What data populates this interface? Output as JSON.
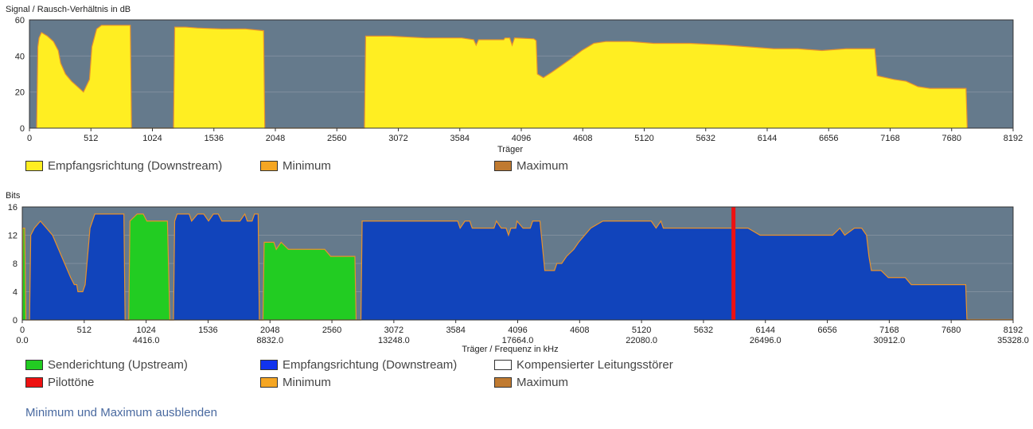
{
  "chart_data": [
    {
      "type": "area",
      "title": "Signal / Rausch-Verhältnis in dB",
      "xlabel": "Träger",
      "ylabel": "",
      "xlim": [
        0,
        8192
      ],
      "ylim": [
        0,
        60
      ],
      "x_ticks": [
        0,
        512,
        1024,
        1536,
        2048,
        2560,
        3072,
        3584,
        4096,
        4608,
        5120,
        5632,
        6144,
        6656,
        7168,
        7680,
        8192
      ],
      "y_ticks": [
        0,
        20,
        40,
        60
      ],
      "grid": true,
      "legend": [
        {
          "label": "Empfangsrichtung (Downstream)",
          "color": "#ffee22"
        },
        {
          "label": "Minimum",
          "color": "#f5a623"
        },
        {
          "label": "Maximum",
          "color": "#c07a30"
        }
      ],
      "series": [
        {
          "name": "Empfangsrichtung (Downstream)",
          "color": "#ffee22",
          "points": [
            [
              60,
              0
            ],
            [
              70,
              45
            ],
            [
              80,
              50
            ],
            [
              100,
              53
            ],
            [
              150,
              51
            ],
            [
              200,
              48
            ],
            [
              240,
              43
            ],
            [
              260,
              36
            ],
            [
              300,
              30
            ],
            [
              350,
              26
            ],
            [
              400,
              23
            ],
            [
              450,
              20
            ],
            [
              500,
              27
            ],
            [
              520,
              45
            ],
            [
              560,
              55
            ],
            [
              600,
              57
            ],
            [
              640,
              57
            ],
            [
              700,
              57
            ],
            [
              800,
              57
            ],
            [
              840,
              57
            ],
            [
              850,
              0
            ],
            [
              1200,
              0
            ],
            [
              1210,
              56
            ],
            [
              1300,
              56
            ],
            [
              1400,
              55.5
            ],
            [
              1600,
              55
            ],
            [
              1800,
              55
            ],
            [
              1950,
              54
            ],
            [
              1960,
              0
            ],
            [
              2790,
              0
            ],
            [
              2800,
              51
            ],
            [
              3000,
              51
            ],
            [
              3300,
              50
            ],
            [
              3600,
              50
            ],
            [
              3700,
              49
            ],
            [
              3720,
              46
            ],
            [
              3740,
              49
            ],
            [
              3950,
              49
            ],
            [
              3960,
              50
            ],
            [
              4000,
              50
            ],
            [
              4020,
              46
            ],
            [
              4040,
              50
            ],
            [
              4200,
              49.5
            ],
            [
              4220,
              48.5
            ],
            [
              4230,
              30
            ],
            [
              4280,
              28
            ],
            [
              4350,
              31
            ],
            [
              4500,
              38
            ],
            [
              4600,
              43
            ],
            [
              4700,
              47
            ],
            [
              4800,
              48
            ],
            [
              5000,
              48
            ],
            [
              5200,
              47
            ],
            [
              5500,
              47
            ],
            [
              5800,
              46
            ],
            [
              6000,
              45
            ],
            [
              6200,
              44
            ],
            [
              6400,
              44
            ],
            [
              6600,
              43
            ],
            [
              6800,
              44
            ],
            [
              7000,
              44
            ],
            [
              7040,
              44
            ],
            [
              7060,
              29
            ],
            [
              7200,
              27
            ],
            [
              7300,
              26
            ],
            [
              7400,
              23
            ],
            [
              7500,
              22
            ],
            [
              7600,
              22
            ],
            [
              7800,
              22
            ],
            [
              7810,
              0
            ]
          ]
        }
      ]
    },
    {
      "type": "area",
      "title": "Bits",
      "xlabel": "Träger / Frequenz in kHz",
      "ylabel": "",
      "xlim": [
        0,
        8192
      ],
      "ylim": [
        0,
        16
      ],
      "x_ticks": [
        0,
        512,
        1024,
        1536,
        2048,
        2560,
        3072,
        3584,
        4096,
        4608,
        5120,
        5632,
        6144,
        6656,
        7168,
        7680,
        8192
      ],
      "freq_ticks": [
        "0.0",
        "4416.0",
        "8832.0",
        "13248.0",
        "17664.0",
        "22080.0",
        "26496.0",
        "30912.0",
        "35328.0"
      ],
      "y_ticks": [
        0,
        4,
        8,
        12,
        16
      ],
      "grid": true,
      "legend": [
        {
          "label": "Senderichtung (Upstream)",
          "color": "#22cc22"
        },
        {
          "label": "Empfangsrichtung (Downstream)",
          "color": "#1144bb"
        },
        {
          "label": "Kompensierter Leitungsstörer",
          "color": "#ffffff"
        },
        {
          "label": "Pilottöne",
          "color": "#ee1111"
        },
        {
          "label": "Minimum",
          "color": "#f5a623"
        },
        {
          "label": "Maximum",
          "color": "#c07a30"
        }
      ],
      "series": [
        {
          "name": "Senderichtung (Upstream)",
          "color": "#22cc22",
          "points": [
            [
              0,
              0
            ],
            [
              5,
              13
            ],
            [
              20,
              13
            ],
            [
              30,
              0
            ],
            [
              880,
              0
            ],
            [
              890,
              14
            ],
            [
              950,
              15
            ],
            [
              1000,
              15
            ],
            [
              1030,
              14
            ],
            [
              1200,
              14
            ],
            [
              1220,
              0
            ],
            [
              1990,
              0
            ],
            [
              2000,
              11
            ],
            [
              2080,
              11
            ],
            [
              2100,
              10
            ],
            [
              2140,
              11
            ],
            [
              2200,
              10
            ],
            [
              2500,
              10
            ],
            [
              2550,
              9
            ],
            [
              2750,
              9
            ],
            [
              2760,
              0
            ]
          ]
        },
        {
          "name": "Empfangsrichtung (Downstream)",
          "color": "#1144bb",
          "points": [
            [
              60,
              0
            ],
            [
              70,
              12
            ],
            [
              100,
              13
            ],
            [
              150,
              14
            ],
            [
              200,
              13
            ],
            [
              250,
              12
            ],
            [
              300,
              10
            ],
            [
              350,
              8
            ],
            [
              400,
              6
            ],
            [
              430,
              5
            ],
            [
              450,
              5
            ],
            [
              460,
              4
            ],
            [
              500,
              4
            ],
            [
              520,
              5
            ],
            [
              540,
              9
            ],
            [
              560,
              13
            ],
            [
              600,
              15
            ],
            [
              800,
              15
            ],
            [
              840,
              15
            ],
            [
              850,
              0
            ],
            [
              1250,
              0
            ],
            [
              1260,
              14
            ],
            [
              1280,
              15
            ],
            [
              1380,
              15
            ],
            [
              1400,
              14
            ],
            [
              1450,
              15
            ],
            [
              1500,
              15
            ],
            [
              1540,
              14
            ],
            [
              1580,
              15
            ],
            [
              1620,
              15
            ],
            [
              1650,
              14
            ],
            [
              1800,
              14
            ],
            [
              1840,
              15
            ],
            [
              1860,
              14
            ],
            [
              1900,
              14
            ],
            [
              1920,
              15
            ],
            [
              1950,
              15
            ],
            [
              1960,
              0
            ],
            [
              2800,
              0
            ],
            [
              2810,
              14
            ],
            [
              3000,
              14
            ],
            [
              3500,
              14
            ],
            [
              3600,
              14
            ],
            [
              3620,
              13
            ],
            [
              3660,
              14
            ],
            [
              3700,
              14
            ],
            [
              3720,
              13
            ],
            [
              3900,
              13
            ],
            [
              3920,
              14
            ],
            [
              3960,
              13
            ],
            [
              4000,
              13
            ],
            [
              4020,
              12
            ],
            [
              4040,
              13
            ],
            [
              4080,
              13
            ],
            [
              4090,
              14
            ],
            [
              4140,
              13
            ],
            [
              4200,
              13
            ],
            [
              4220,
              14
            ],
            [
              4280,
              14
            ],
            [
              4320,
              7
            ],
            [
              4400,
              7
            ],
            [
              4420,
              8
            ],
            [
              4460,
              8
            ],
            [
              4500,
              9
            ],
            [
              4560,
              10
            ],
            [
              4600,
              11
            ],
            [
              4650,
              12
            ],
            [
              4700,
              13
            ],
            [
              4800,
              14
            ],
            [
              5000,
              14
            ],
            [
              5200,
              14
            ],
            [
              5240,
              13
            ],
            [
              5280,
              14
            ],
            [
              5300,
              13
            ],
            [
              5600,
              13
            ],
            [
              5700,
              13
            ],
            [
              6000,
              13
            ],
            [
              6100,
              12
            ],
            [
              6400,
              12
            ],
            [
              6700,
              12
            ],
            [
              6760,
              13
            ],
            [
              6800,
              12
            ],
            [
              6880,
              13
            ],
            [
              6940,
              13
            ],
            [
              6980,
              12
            ],
            [
              7000,
              9
            ],
            [
              7020,
              7
            ],
            [
              7100,
              7
            ],
            [
              7160,
              6
            ],
            [
              7300,
              6
            ],
            [
              7350,
              5
            ],
            [
              7500,
              5
            ],
            [
              7800,
              5
            ],
            [
              7810,
              0
            ]
          ]
        }
      ],
      "pilot_tones": [
        5880
      ]
    }
  ],
  "toggle_link": "Minimum und Maximum ausblenden"
}
